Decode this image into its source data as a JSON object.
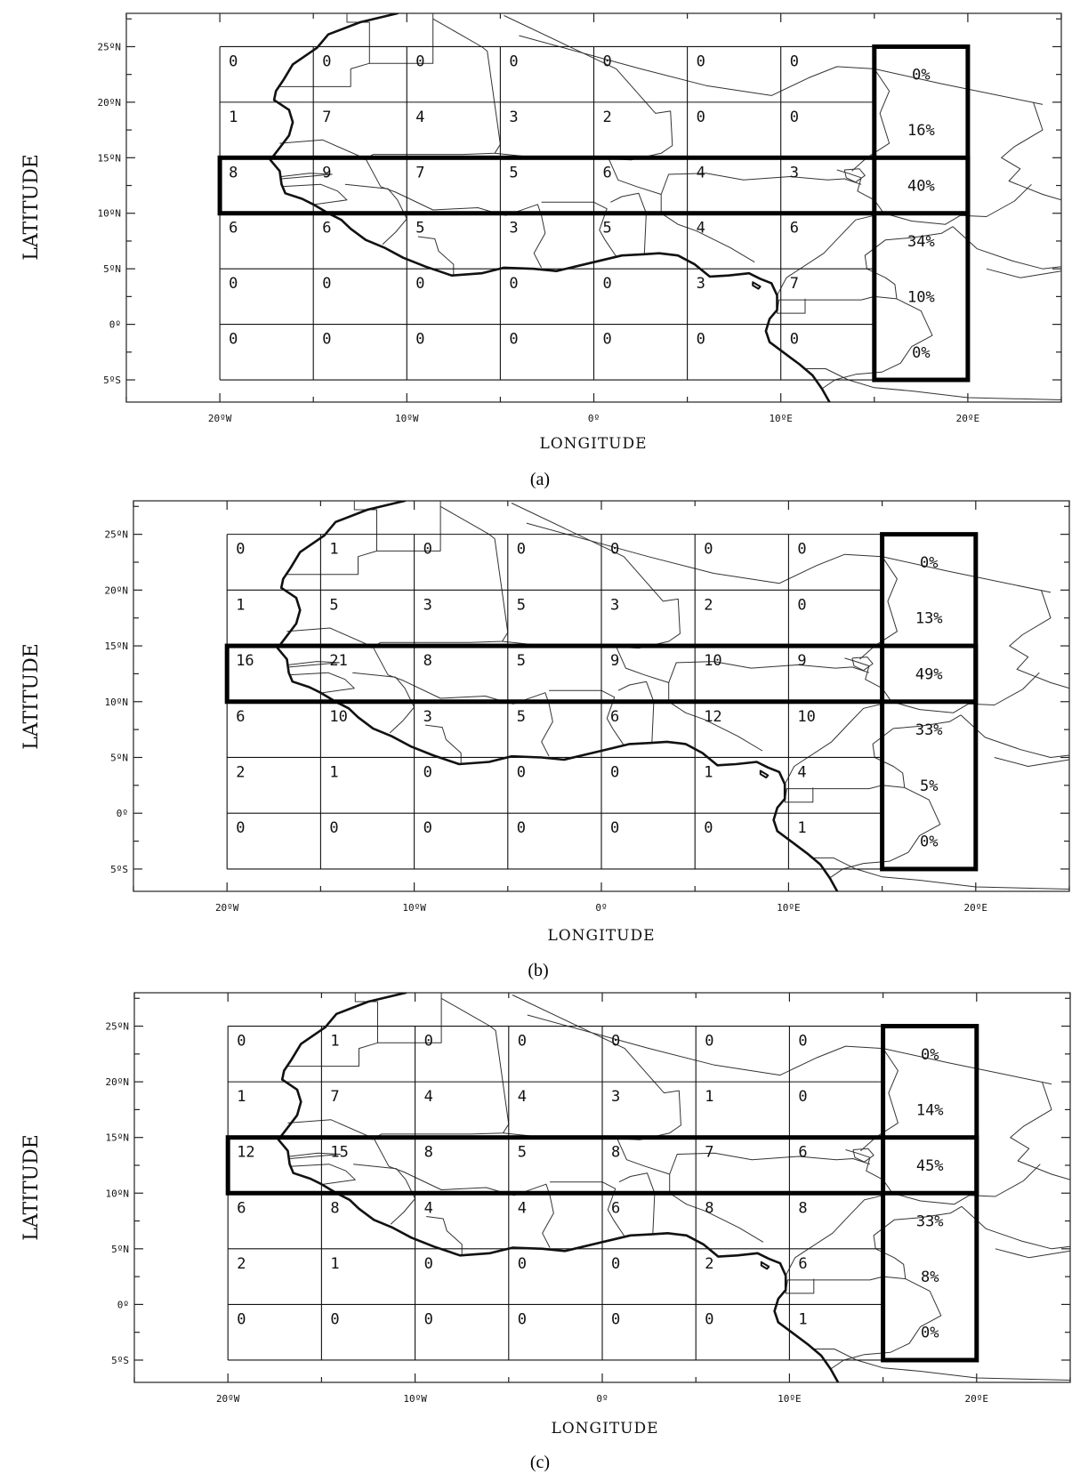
{
  "axes": {
    "xlabel": "LONGITUDE",
    "ylabel": "LATITUDE",
    "xticks": [
      "20ºW",
      "10ºW",
      "0º",
      "10ºE",
      "20ºE"
    ],
    "yticks": [
      "25ºN",
      "20ºN",
      "15ºN",
      "10ºN",
      "5ºN",
      "0º",
      "5ºS"
    ],
    "xtick_values": [
      -20,
      -10,
      0,
      10,
      20
    ],
    "ytick_values": [
      25,
      20,
      15,
      10,
      5,
      0,
      -5
    ],
    "xlim": [
      -25,
      25
    ],
    "ylim": [
      -7,
      28
    ]
  },
  "grid": {
    "lon_edges": [
      -20,
      -15,
      -10,
      -5,
      0,
      5,
      10,
      15
    ],
    "lat_edges": [
      25,
      20,
      15,
      10,
      5,
      0,
      -5
    ]
  },
  "highlight_boxes": [
    {
      "lon": [
        -20,
        20
      ],
      "lat": [
        10,
        15
      ]
    },
    {
      "lon": [
        15,
        20
      ],
      "lat": [
        -5,
        25
      ]
    }
  ],
  "panels": [
    {
      "caption": "(a)",
      "cells": [
        [
          "0",
          "0",
          "0",
          "0",
          "0",
          "0",
          "0"
        ],
        [
          "1",
          "7",
          "4",
          "3",
          "2",
          "0",
          "0"
        ],
        [
          "8",
          "9",
          "7",
          "5",
          "6",
          "4",
          "3"
        ],
        [
          "6",
          "6",
          "5",
          "3",
          "5",
          "4",
          "6"
        ],
        [
          "0",
          "0",
          "0",
          "0",
          "0",
          "3",
          "7"
        ],
        [
          "0",
          "0",
          "0",
          "0",
          "0",
          "0",
          "0"
        ]
      ],
      "percentages": [
        "0%",
        "16%",
        "40%",
        "34%",
        "10%",
        "0%"
      ]
    },
    {
      "caption": "(b)",
      "cells": [
        [
          "0",
          "1",
          "0",
          "0",
          "0",
          "0",
          "0"
        ],
        [
          "1",
          "5",
          "3",
          "5",
          "3",
          "2",
          "0"
        ],
        [
          "16",
          "21",
          "8",
          "5",
          "9",
          "10",
          "9"
        ],
        [
          "6",
          "10",
          "3",
          "5",
          "6",
          "12",
          "10"
        ],
        [
          "2",
          "1",
          "0",
          "0",
          "0",
          "1",
          "4"
        ],
        [
          "0",
          "0",
          "0",
          "0",
          "0",
          "0",
          "1"
        ]
      ],
      "percentages": [
        "0%",
        "13%",
        "49%",
        "33%",
        "5%",
        "0%"
      ]
    },
    {
      "caption": "(c)",
      "cells": [
        [
          "0",
          "1",
          "0",
          "0",
          "0",
          "0",
          "0"
        ],
        [
          "1",
          "7",
          "4",
          "4",
          "3",
          "1",
          "0"
        ],
        [
          "12",
          "15",
          "8",
          "5",
          "8",
          "7",
          "6"
        ],
        [
          "6",
          "8",
          "4",
          "4",
          "6",
          "8",
          "8"
        ],
        [
          "2",
          "1",
          "0",
          "0",
          "0",
          "2",
          "6"
        ],
        [
          "0",
          "0",
          "0",
          "0",
          "0",
          "0",
          "1"
        ]
      ],
      "percentages": [
        "0%",
        "14%",
        "45%",
        "33%",
        "8%",
        "0%"
      ]
    }
  ],
  "coastline": [
    [
      -10.5,
      28
    ],
    [
      -12.5,
      27.2
    ],
    [
      -14.2,
      26.1
    ],
    [
      -14.8,
      24.9
    ],
    [
      -16.1,
      23.4
    ],
    [
      -16.6,
      22.0
    ],
    [
      -17.0,
      21.0
    ],
    [
      -17.1,
      20.2
    ],
    [
      -16.3,
      19.3
    ],
    [
      -16.1,
      18.2
    ],
    [
      -16.3,
      17.0
    ],
    [
      -16.8,
      15.9
    ],
    [
      -17.3,
      14.8
    ],
    [
      -16.8,
      13.8
    ],
    [
      -16.7,
      12.6
    ],
    [
      -16.5,
      11.8
    ],
    [
      -15.6,
      11.3
    ],
    [
      -15.0,
      10.8
    ],
    [
      -14.2,
      10.0
    ],
    [
      -13.5,
      9.4
    ],
    [
      -13.0,
      8.6
    ],
    [
      -12.2,
      7.6
    ],
    [
      -11.2,
      6.9
    ],
    [
      -10.2,
      6.0
    ],
    [
      -9.0,
      5.2
    ],
    [
      -7.6,
      4.4
    ],
    [
      -6.0,
      4.6
    ],
    [
      -4.8,
      5.1
    ],
    [
      -3.2,
      5.0
    ],
    [
      -2.0,
      4.8
    ],
    [
      -1.0,
      5.2
    ],
    [
      0.5,
      5.8
    ],
    [
      1.5,
      6.2
    ],
    [
      2.6,
      6.3
    ],
    [
      3.5,
      6.4
    ],
    [
      4.5,
      6.2
    ],
    [
      5.4,
      5.4
    ],
    [
      6.2,
      4.3
    ],
    [
      7.2,
      4.4
    ],
    [
      8.3,
      4.6
    ],
    [
      8.9,
      4.1
    ],
    [
      9.5,
      3.7
    ],
    [
      9.8,
      2.6
    ],
    [
      9.8,
      1.3
    ],
    [
      9.4,
      0.5
    ],
    [
      9.2,
      -0.6
    ],
    [
      9.4,
      -1.6
    ],
    [
      10.2,
      -2.6
    ],
    [
      11.0,
      -3.6
    ],
    [
      11.7,
      -4.6
    ],
    [
      12.2,
      -5.8
    ],
    [
      12.6,
      -7.0
    ]
  ],
  "borders": [
    [
      [
        -13.2,
        28
      ],
      [
        -13.2,
        27.2
      ],
      [
        -12.0,
        27.2
      ],
      [
        -12.0,
        23.5
      ],
      [
        -8.6,
        23.5
      ],
      [
        -8.6,
        28
      ]
    ],
    [
      [
        -8.6,
        27.5
      ],
      [
        -6.0,
        25.0
      ],
      [
        -5.7,
        24.6
      ],
      [
        -5.0,
        16.2
      ],
      [
        -5.3,
        15.4
      ],
      [
        -7.0,
        15.3
      ],
      [
        -11.8,
        15.3
      ],
      [
        -12.3,
        14.8
      ]
    ],
    [
      [
        -4.8,
        27.8
      ],
      [
        1.2,
        23.0
      ],
      [
        3.3,
        19.0
      ],
      [
        4.1,
        19.2
      ],
      [
        4.2,
        16.1
      ],
      [
        3.6,
        15.4
      ],
      [
        2.0,
        14.8
      ],
      [
        0.8,
        14.9
      ]
    ],
    [
      [
        -4.0,
        26.0
      ],
      [
        2.5,
        23.0
      ],
      [
        6.0,
        21.5
      ],
      [
        9.5,
        20.6
      ],
      [
        11.5,
        22.2
      ],
      [
        13.0,
        23.2
      ],
      [
        15.0,
        23.0
      ],
      [
        18.5,
        21.7
      ],
      [
        24.0,
        19.8
      ]
    ],
    [
      [
        -16.8,
        21.4
      ],
      [
        -13.0,
        21.4
      ],
      [
        -13.0,
        23.0
      ],
      [
        -12.0,
        23.5
      ]
    ],
    [
      [
        -16.8,
        16.3
      ],
      [
        -14.5,
        16.6
      ],
      [
        -12.2,
        14.9
      ],
      [
        -11.4,
        12.4
      ],
      [
        -10.6,
        11.9
      ],
      [
        -8.6,
        10.3
      ],
      [
        -7.4,
        10.4
      ],
      [
        -6.2,
        10.5
      ],
      [
        -5.4,
        10.1
      ],
      [
        -4.7,
        9.8
      ],
      [
        -3.0,
        10.8
      ],
      [
        -2.8,
        9.8
      ],
      [
        -2.6,
        8.2
      ],
      [
        -3.2,
        6.4
      ],
      [
        -2.8,
        5.1
      ]
    ],
    [
      [
        -16.7,
        13.3
      ],
      [
        -15.2,
        13.6
      ],
      [
        -14.0,
        13.5
      ],
      [
        -16.7,
        13.1
      ]
    ],
    [
      [
        -16.7,
        12.4
      ],
      [
        -14.6,
        12.6
      ],
      [
        -13.7,
        12.0
      ],
      [
        -13.2,
        11.2
      ],
      [
        -14.9,
        10.8
      ]
    ],
    [
      [
        -13.3,
        12.6
      ],
      [
        -11.0,
        12.2
      ],
      [
        -10.5,
        11.2
      ],
      [
        -10.0,
        9.5
      ],
      [
        -10.6,
        8.3
      ],
      [
        -11.3,
        7.2
      ]
    ],
    [
      [
        -9.4,
        7.9
      ],
      [
        -8.5,
        7.7
      ],
      [
        -8.3,
        6.6
      ],
      [
        -7.5,
        5.4
      ],
      [
        -7.5,
        4.4
      ]
    ],
    [
      [
        -5.3,
        15.4
      ],
      [
        -3.0,
        15.0
      ],
      [
        -0.5,
        15.0
      ],
      [
        0.8,
        14.9
      ],
      [
        1.3,
        13.0
      ],
      [
        2.3,
        12.4
      ],
      [
        3.6,
        11.7
      ]
    ],
    [
      [
        -2.8,
        11.0
      ],
      [
        0.0,
        11.0
      ],
      [
        0.7,
        10.4
      ],
      [
        0.3,
        8.5
      ],
      [
        0.6,
        7.6
      ],
      [
        1.2,
        6.1
      ]
    ],
    [
      [
        0.9,
        11.0
      ],
      [
        1.5,
        11.5
      ],
      [
        2.4,
        11.8
      ],
      [
        2.8,
        10.0
      ],
      [
        2.7,
        6.3
      ]
    ],
    [
      [
        3.6,
        11.7
      ],
      [
        4.0,
        13.5
      ],
      [
        6.0,
        13.6
      ],
      [
        8.0,
        13.0
      ],
      [
        10.5,
        13.3
      ],
      [
        12.5,
        13.0
      ],
      [
        13.4,
        13.1
      ],
      [
        14.3,
        12.6
      ]
    ],
    [
      [
        3.6,
        11.7
      ],
      [
        3.6,
        10.0
      ],
      [
        4.5,
        9.0
      ],
      [
        5.5,
        8.4
      ],
      [
        7.3,
        6.9
      ],
      [
        8.6,
        5.6
      ]
    ],
    [
      [
        13.0,
        13.9
      ],
      [
        13.6,
        13.6
      ],
      [
        14.3,
        13.2
      ],
      [
        14.1,
        12.0
      ],
      [
        15.0,
        11.2
      ],
      [
        15.5,
        10.0
      ],
      [
        14.0,
        9.4
      ],
      [
        13.2,
        8.0
      ],
      [
        12.3,
        6.4
      ],
      [
        10.3,
        4.2
      ],
      [
        9.8,
        2.6
      ]
    ],
    [
      [
        15.0,
        23.0
      ],
      [
        15.8,
        21.0
      ],
      [
        15.3,
        19.0
      ],
      [
        15.8,
        16.3
      ],
      [
        14.6,
        15.0
      ],
      [
        13.8,
        13.8
      ]
    ],
    [
      [
        15.5,
        10.0
      ],
      [
        17.0,
        9.3
      ],
      [
        18.8,
        9.0
      ],
      [
        19.6,
        9.8
      ],
      [
        21.0,
        9.7
      ],
      [
        22.5,
        11.1
      ],
      [
        23.4,
        12.6
      ]
    ],
    [
      [
        16.2,
        2.3
      ],
      [
        15.0,
        2.5
      ],
      [
        14.3,
        2.2
      ],
      [
        13.3,
        2.2
      ],
      [
        11.4,
        2.2
      ],
      [
        9.9,
        2.2
      ],
      [
        9.8,
        1.0
      ],
      [
        11.3,
        1.0
      ],
      [
        11.3,
        2.3
      ]
    ],
    [
      [
        16.2,
        2.3
      ],
      [
        16.1,
        3.6
      ],
      [
        15.6,
        4.2
      ],
      [
        14.6,
        5.0
      ],
      [
        14.5,
        6.2
      ],
      [
        15.6,
        7.6
      ],
      [
        17.0,
        7.8
      ],
      [
        18.6,
        8.2
      ],
      [
        19.2,
        8.8
      ]
    ],
    [
      [
        19.2,
        8.8
      ],
      [
        20.5,
        6.8
      ],
      [
        22.4,
        5.7
      ],
      [
        24.0,
        5.0
      ],
      [
        25.0,
        5.2
      ]
    ],
    [
      [
        16.2,
        2.3
      ],
      [
        17.5,
        1.2
      ],
      [
        18.1,
        -1.0
      ],
      [
        17.0,
        -2.0
      ],
      [
        16.4,
        -3.5
      ],
      [
        15.4,
        -4.3
      ],
      [
        14.0,
        -4.5
      ],
      [
        12.9,
        -5.0
      ],
      [
        12.2,
        -5.8
      ]
    ],
    [
      [
        11.2,
        -4.0
      ],
      [
        12.4,
        -4.0
      ],
      [
        13.6,
        -5.0
      ],
      [
        15.0,
        -5.7
      ],
      [
        17.0,
        -6.0
      ],
      [
        20.0,
        -6.6
      ],
      [
        25.0,
        -6.8
      ]
    ],
    [
      [
        23.5,
        20.0
      ],
      [
        24.0,
        17.5
      ],
      [
        22.5,
        16.0
      ],
      [
        21.8,
        15.0
      ],
      [
        22.8,
        14.0
      ],
      [
        22.2,
        12.9
      ],
      [
        24.0,
        11.7
      ],
      [
        25.0,
        11.2
      ]
    ],
    [
      [
        21.0,
        5.0
      ],
      [
        22.8,
        4.2
      ],
      [
        25.0,
        4.8
      ]
    ]
  ],
  "island": [
    [
      8.5,
      3.8
    ],
    [
      8.9,
      3.4
    ],
    [
      8.8,
      3.2
    ],
    [
      8.5,
      3.5
    ],
    [
      8.5,
      3.8
    ]
  ],
  "lake_chad": [
    [
      13.4,
      13.9
    ],
    [
      14.2,
      14.0
    ],
    [
      14.5,
      13.4
    ],
    [
      14.0,
      12.8
    ],
    [
      13.5,
      13.2
    ],
    [
      13.4,
      13.9
    ]
  ]
}
